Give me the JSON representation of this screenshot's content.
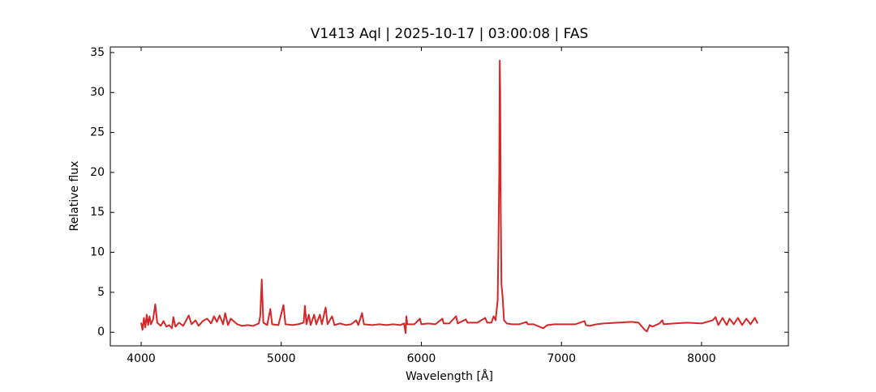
{
  "chart_data": {
    "type": "line",
    "title": "V1413 Aql | 2025-10-17 | 03:00:08 | FAS",
    "xlabel": "Wavelength [Å]",
    "ylabel": "Relative flux",
    "color": "#d62728",
    "x": [
      4000,
      4010,
      4020,
      4030,
      4040,
      4050,
      4060,
      4070,
      4085,
      4101,
      4115,
      4140,
      4160,
      4180,
      4200,
      4220,
      4230,
      4245,
      4270,
      4300,
      4340,
      4360,
      4388,
      4410,
      4440,
      4471,
      4500,
      4520,
      4541,
      4560,
      4585,
      4600,
      4620,
      4640,
      4686,
      4720,
      4760,
      4800,
      4840,
      4850,
      4861,
      4872,
      4900,
      4922,
      4935,
      4980,
      5016,
      5030,
      5080,
      5120,
      5160,
      5169,
      5180,
      5197,
      5210,
      5235,
      5250,
      5276,
      5290,
      5317,
      5330,
      5363,
      5380,
      5420,
      5460,
      5500,
      5535,
      5550,
      5577,
      5590,
      5650,
      5700,
      5750,
      5800,
      5850,
      5876,
      5888,
      5893,
      5900,
      5950,
      5990,
      6000,
      6050,
      6100,
      6150,
      6160,
      6200,
      6248,
      6260,
      6318,
      6330,
      6400,
      6456,
      6470,
      6500,
      6516,
      6530,
      6545,
      6550,
      6556,
      6560,
      6563,
      6567,
      6572,
      6580,
      6590,
      6610,
      6650,
      6700,
      6750,
      6760,
      6800,
      6870,
      6900,
      6950,
      7000,
      7050,
      7100,
      7165,
      7175,
      7200,
      7250,
      7300,
      7400,
      7500,
      7550,
      7595,
      7610,
      7630,
      7650,
      7700,
      7720,
      7730,
      7800,
      7900,
      8000,
      8080,
      8100,
      8120,
      8150,
      8180,
      8200,
      8230,
      8260,
      8290,
      8320,
      8350,
      8380,
      8400
    ],
    "values": [
      1.2,
      0.3,
      1.8,
      0.6,
      2.2,
      0.9,
      2.0,
      1.0,
      1.6,
      3.5,
      1.2,
      0.8,
      1.4,
      0.7,
      0.9,
      0.5,
      1.9,
      0.7,
      1.2,
      0.8,
      2.1,
      1.0,
      1.5,
      0.8,
      1.4,
      1.7,
      1.1,
      2.0,
      1.3,
      2.1,
      1.0,
      2.4,
      0.9,
      1.7,
      1.0,
      0.8,
      0.9,
      0.8,
      1.1,
      2.0,
      6.6,
      1.2,
      0.9,
      2.9,
      1.0,
      0.9,
      3.4,
      1.0,
      0.9,
      1.0,
      1.2,
      3.3,
      1.0,
      2.2,
      0.9,
      2.2,
      1.0,
      2.2,
      1.0,
      3.1,
      1.0,
      2.0,
      0.9,
      1.1,
      0.9,
      1.0,
      1.5,
      0.9,
      2.4,
      1.0,
      0.9,
      1.0,
      0.9,
      1.0,
      0.9,
      1.1,
      -0.1,
      2.0,
      1.0,
      1.0,
      1.7,
      1.0,
      1.1,
      1.0,
      1.7,
      1.1,
      1.1,
      2.0,
      1.1,
      1.6,
      1.2,
      1.2,
      1.8,
      1.2,
      1.2,
      2.0,
      1.5,
      4.0,
      10.5,
      20,
      34.0,
      30,
      15,
      6,
      4.5,
      1.5,
      1.1,
      1.0,
      1.0,
      1.3,
      1.0,
      1.0,
      0.5,
      0.9,
      1.0,
      1.0,
      1.0,
      1.0,
      1.4,
      0.9,
      0.8,
      1.0,
      1.1,
      1.2,
      1.3,
      1.2,
      0.3,
      0.1,
      0.9,
      0.7,
      1.1,
      1.5,
      1.0,
      1.1,
      1.2,
      1.1,
      1.5,
      1.9,
      0.9,
      1.8,
      0.9,
      1.7,
      1.0,
      1.8,
      0.9,
      1.7,
      1.0,
      1.8,
      1.1
    ],
    "xlim": [
      3780,
      8620
    ],
    "xticks": [
      4000,
      5000,
      6000,
      7000,
      8000
    ],
    "ylim": [
      -1.7,
      35.7
    ],
    "yticks": [
      0,
      5,
      10,
      15,
      20,
      25,
      30,
      35
    ]
  }
}
